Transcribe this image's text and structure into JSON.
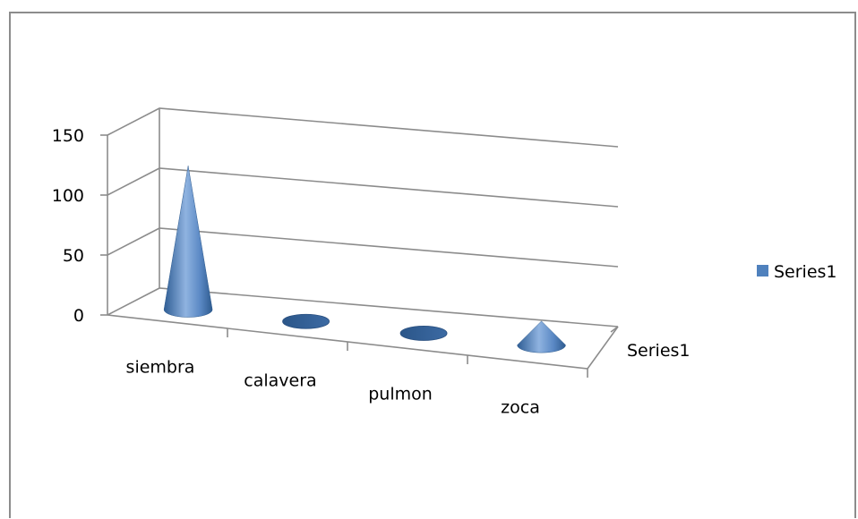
{
  "chart_data": {
    "type": "bar",
    "shape": "3d-cone",
    "categories": [
      "siembra",
      "calavera",
      "pulmon",
      "zoca"
    ],
    "series": [
      {
        "name": "Series1",
        "values": [
          120,
          0,
          0,
          20
        ]
      }
    ],
    "ylim": [
      0,
      150
    ],
    "yticks": [
      "0",
      "50",
      "100",
      "150"
    ],
    "depth_axis_label": "Series1",
    "legend": {
      "position": "right",
      "entries": [
        "Series1"
      ]
    },
    "grid": true,
    "colors": {
      "series": "#4f81bd",
      "series_dark": "#2e5b8f",
      "grid": "#8c8c8c"
    }
  }
}
